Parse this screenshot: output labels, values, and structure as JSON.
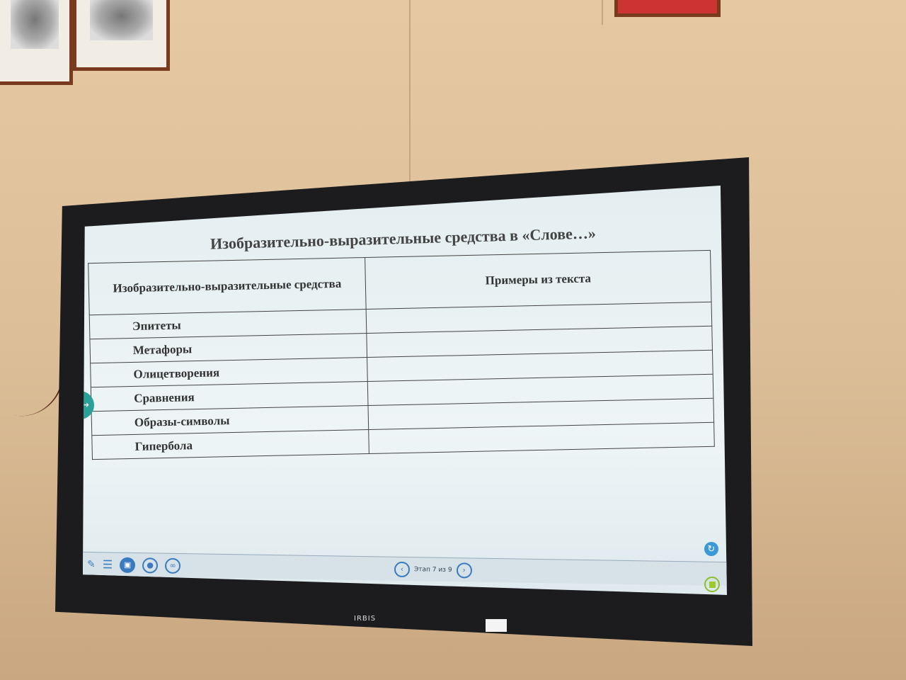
{
  "slide": {
    "title": "Изобразительно-выразительные средства в «Слове…»",
    "table": {
      "headers": [
        "Изобразительно-выразительные средства",
        "Примеры из текста"
      ],
      "rows": [
        "Эпитеты",
        "Метафоры",
        "Олицетворения",
        "Сравнения",
        "Образы-символы",
        "Гипербола"
      ]
    }
  },
  "toolbar": {
    "stage_label": "Этап 7 из 9",
    "icons": [
      "pen-icon",
      "menu-icon",
      "slides-icon",
      "user-icon",
      "group-icon"
    ]
  },
  "device": {
    "brand": "IRBIS"
  },
  "colors": {
    "accent": "#3a7bc0",
    "teal": "#2aa198",
    "green": "#9ccc2a"
  }
}
